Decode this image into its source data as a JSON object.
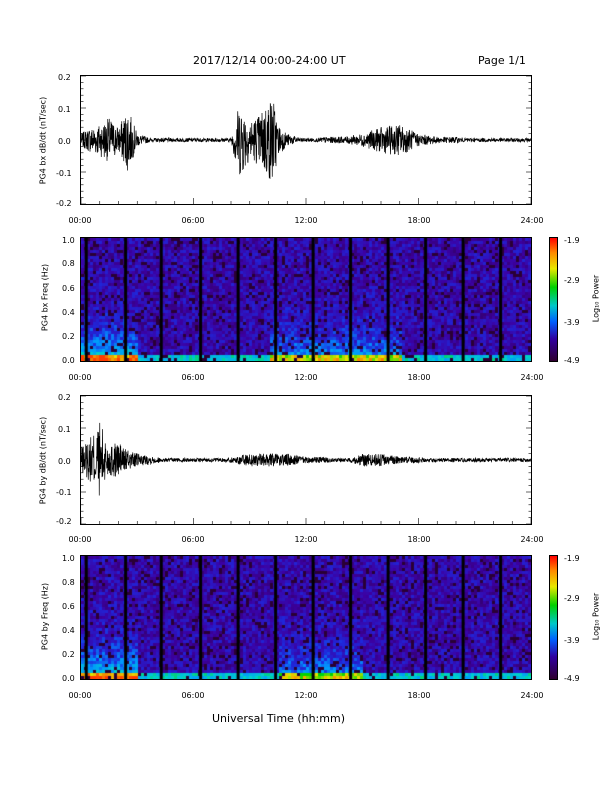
{
  "header": {
    "date_range": "2017/12/14  00:00-24:00 UT",
    "page": "Page 1/1"
  },
  "xaxis": {
    "ticks": [
      "00:00",
      "06:00",
      "12:00",
      "18:00",
      "24:00"
    ],
    "label": "Universal Time (hh:mm)"
  },
  "chart_data": [
    {
      "type": "line",
      "ylabel": "PG4 bx dB/dt (nT/sec)",
      "ylim": [
        -0.2,
        0.2
      ],
      "yticks": [
        "0.2",
        "0.1",
        "0.0",
        "-0.1",
        "-0.2"
      ],
      "xlim": [
        "00:00",
        "24:00"
      ],
      "series": [
        {
          "x": [
            "00:00",
            "00:30",
            "01:00",
            "01:30",
            "02:00",
            "02:30",
            "03:00",
            "04:00",
            "05:00",
            "06:00",
            "07:00",
            "08:00",
            "08:15",
            "08:30",
            "09:00",
            "09:30",
            "10:00",
            "10:15",
            "10:30",
            "11:00",
            "12:00",
            "13:00",
            "14:00",
            "15:00",
            "16:00",
            "17:00",
            "18:00",
            "19:00",
            "20:00",
            "21:00",
            "22:00",
            "23:00",
            "24:00"
          ],
          "y": [
            0.02,
            0.04,
            0.05,
            -0.07,
            0.04,
            -0.1,
            0.02,
            0.0,
            0.0,
            0.0,
            0.0,
            0.0,
            0.08,
            -0.12,
            0.06,
            -0.08,
            0.13,
            -0.14,
            0.05,
            0.02,
            0.0,
            0.01,
            -0.01,
            0.02,
            0.04,
            -0.05,
            0.02,
            0.01,
            0.01,
            0.0,
            0.0,
            0.0,
            0.0
          ]
        }
      ]
    },
    {
      "type": "heatmap",
      "ylabel": "PG4 bx Freq (Hz)",
      "ylim": [
        0.0,
        1.0
      ],
      "yticks": [
        "1.0",
        "0.8",
        "0.6",
        "0.4",
        "0.2",
        "0.0"
      ],
      "colorbar": {
        "label": "Log₁₀ Power",
        "ticks": [
          "-1.9",
          "-2.9",
          "-3.9",
          "-4.9"
        ]
      }
    },
    {
      "type": "line",
      "ylabel": "PG4 by dB/dt (nT/sec)",
      "ylim": [
        -0.2,
        0.2
      ],
      "yticks": [
        "0.2",
        "0.1",
        "0.0",
        "-0.1",
        "-0.2"
      ],
      "xlim": [
        "00:00",
        "24:00"
      ],
      "series": [
        {
          "x": [
            "00:00",
            "00:30",
            "01:00",
            "01:30",
            "02:00",
            "02:30",
            "03:00",
            "04:00",
            "05:00",
            "06:00",
            "07:00",
            "08:00",
            "09:00",
            "10:00",
            "11:00",
            "12:00",
            "13:00",
            "14:00",
            "15:00",
            "16:00",
            "17:00",
            "18:00",
            "19:00",
            "20:00",
            "21:00",
            "22:00",
            "23:00",
            "24:00"
          ],
          "y": [
            0.04,
            0.07,
            -0.12,
            0.05,
            -0.06,
            0.03,
            0.02,
            0.01,
            0.0,
            0.0,
            0.0,
            0.01,
            -0.02,
            0.02,
            0.02,
            0.01,
            -0.01,
            0.0,
            0.02,
            -0.02,
            0.01,
            0.01,
            0.0,
            0.0,
            0.0,
            0.0,
            0.0,
            0.0
          ]
        }
      ]
    },
    {
      "type": "heatmap",
      "ylabel": "PG4 by Freq (Hz)",
      "ylim": [
        0.0,
        1.0
      ],
      "yticks": [
        "1.0",
        "0.8",
        "0.6",
        "0.4",
        "0.2",
        "0.0"
      ],
      "colorbar": {
        "label": "Log₁₀ Power",
        "ticks": [
          "-1.9",
          "-2.9",
          "-3.9",
          "-4.9"
        ]
      }
    }
  ]
}
